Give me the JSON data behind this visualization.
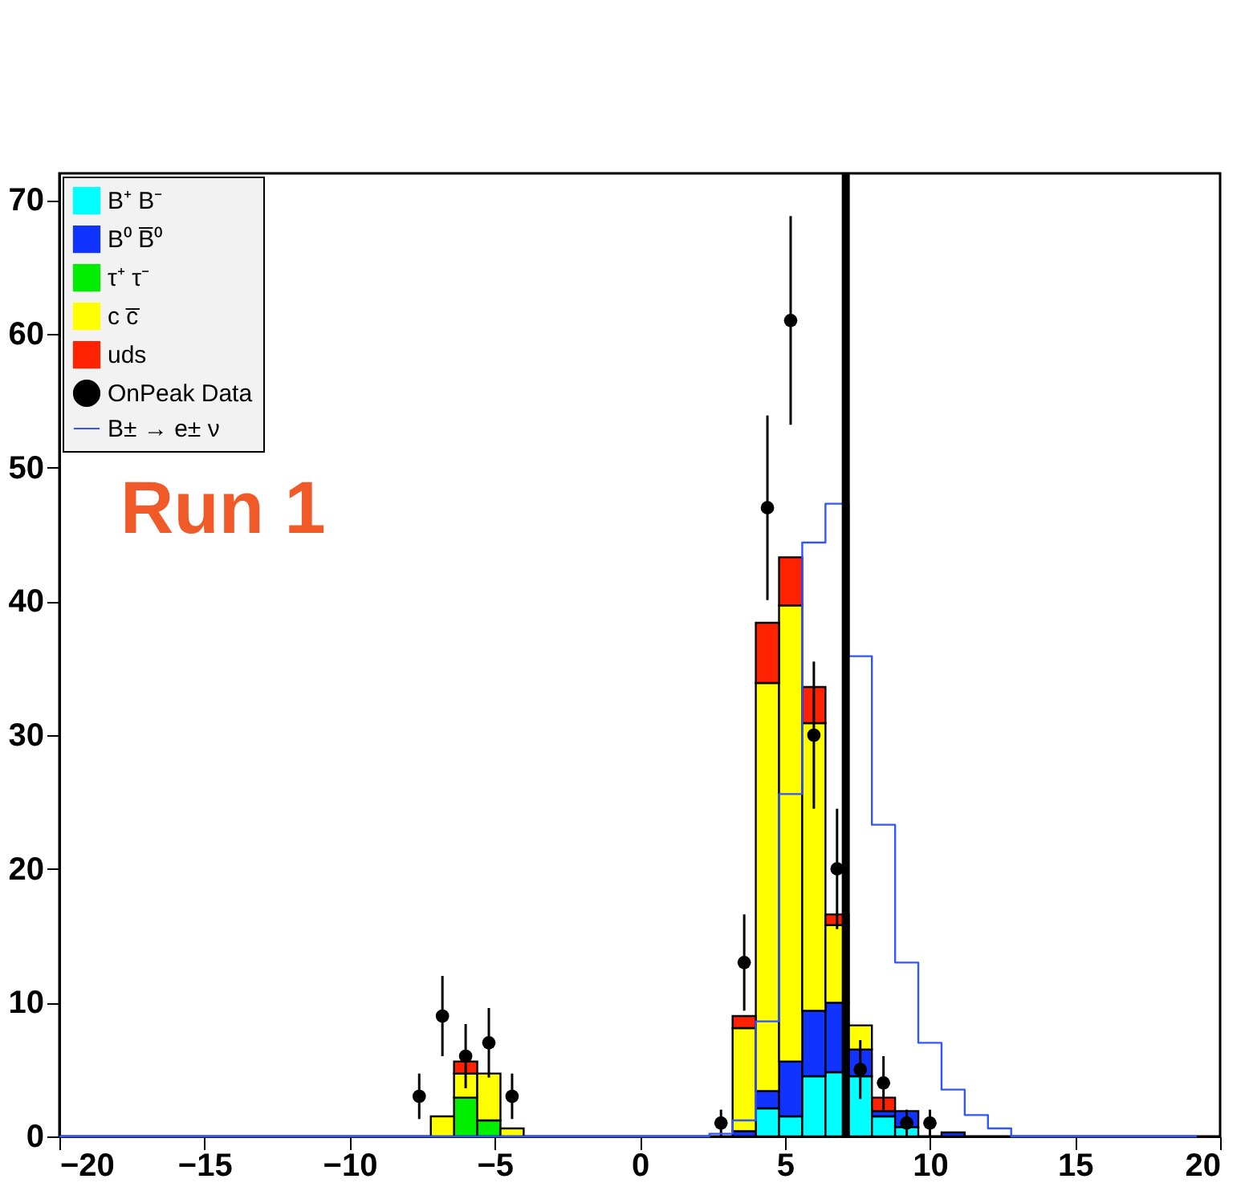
{
  "chart_data": {
    "type": "bar",
    "stacked": true,
    "x": [
      -19.6,
      -18.8,
      -18,
      -17.2,
      -16.4,
      -15.6,
      -14.8,
      -14,
      -13.2,
      -12.4,
      -11.6,
      -10.8,
      -10,
      -9.2,
      -8.4,
      -7.6,
      -6.8,
      -6,
      -5.2,
      -4.4,
      -3.6,
      -2.8,
      -2,
      -1.2,
      -0.4,
      0.4,
      1.2,
      2,
      2.8,
      3.6,
      4.4,
      5.2,
      6,
      6.8,
      7.6,
      8.4,
      9.2,
      10,
      10.8,
      11.6,
      12.4,
      13.2,
      14,
      14.8,
      15.6,
      16.4,
      17.2,
      18,
      18.8,
      19.6
    ],
    "series": [
      {
        "name": "B⁺ B⁻",
        "color": "#00ffff",
        "values": [
          0,
          0,
          0,
          0,
          0,
          0,
          0,
          0,
          0,
          0,
          0,
          0,
          0,
          0,
          0,
          0,
          0,
          0,
          0,
          0,
          0,
          0,
          0,
          0,
          0,
          0,
          0,
          0,
          0,
          0,
          2.1,
          1.5,
          4.5,
          4.8,
          4.5,
          1.5,
          0.7,
          0,
          0,
          0,
          0,
          0,
          0,
          0,
          0,
          0,
          0,
          0,
          0,
          0
        ]
      },
      {
        "name": "B⁰ B̅⁰",
        "color": "#1133ff",
        "values": [
          0,
          0,
          0,
          0,
          0,
          0,
          0,
          0,
          0,
          0,
          0,
          0,
          0,
          0,
          0,
          0,
          0,
          0,
          0,
          0,
          0,
          0,
          0,
          0,
          0,
          0,
          0,
          0,
          0,
          0.4,
          1.3,
          4.1,
          4.9,
          5.2,
          2.0,
          0.4,
          1.2,
          0,
          0.3,
          0,
          0,
          0,
          0,
          0,
          0,
          0,
          0,
          0,
          0,
          0
        ]
      },
      {
        "name": "τ⁺ τ⁻",
        "color": "#00ee00",
        "values": [
          0,
          0,
          0,
          0,
          0,
          0,
          0,
          0,
          0,
          0,
          0,
          0,
          0,
          0,
          0,
          0,
          0,
          2.9,
          1.2,
          0,
          0,
          0,
          0,
          0,
          0,
          0,
          0,
          0,
          0,
          0,
          0,
          0,
          0,
          0,
          0,
          0,
          0,
          0,
          0,
          0,
          0,
          0,
          0,
          0,
          0,
          0,
          0,
          0,
          0,
          0
        ]
      },
      {
        "name": "c c̅",
        "color": "#ffff00",
        "values": [
          0,
          0,
          0,
          0,
          0,
          0,
          0,
          0,
          0,
          0,
          0,
          0,
          0,
          0,
          0,
          0,
          1.5,
          1.8,
          3.5,
          0.6,
          0,
          0,
          0,
          0,
          0,
          0,
          0,
          0,
          0,
          7.7,
          30.5,
          34.1,
          21.5,
          5.8,
          1.8,
          0,
          0,
          0,
          0,
          0,
          0,
          0,
          0,
          0,
          0,
          0,
          0,
          0,
          0,
          0
        ]
      },
      {
        "name": "uds",
        "color": "#ff2200",
        "values": [
          0,
          0,
          0,
          0,
          0,
          0,
          0,
          0,
          0,
          0,
          0,
          0,
          0,
          0,
          0,
          0,
          0,
          0.9,
          0,
          0,
          0,
          0,
          0,
          0,
          0,
          0,
          0,
          0,
          0,
          0.9,
          4.5,
          3.6,
          2.7,
          0.8,
          0,
          1.0,
          0,
          0,
          0,
          0,
          0,
          0,
          0,
          0,
          0,
          0,
          0,
          0,
          0,
          0
        ]
      },
      {
        "name": "OnPeak Data",
        "type": "scatter",
        "color": "#000000",
        "x": [
          -7.6,
          -6.8,
          -6.0,
          -5.2,
          -4.4,
          2.8,
          3.6,
          4.4,
          5.2,
          6.0,
          6.8,
          7.6,
          8.4,
          9.2,
          10.0
        ],
        "values": [
          3,
          9,
          6,
          7,
          3,
          1,
          13,
          47,
          61,
          30,
          20,
          5,
          4,
          1,
          1
        ],
        "errors": [
          1.7,
          3,
          2.4,
          2.6,
          1.7,
          1,
          3.6,
          6.9,
          7.8,
          5.5,
          4.5,
          2.2,
          2,
          1,
          1
        ]
      },
      {
        "name": "B± → e± ν",
        "type": "step",
        "marker": "none",
        "color": "#3355ff",
        "x": [
          -20,
          -19.2,
          -18.4,
          -17.6,
          -16.8,
          -16,
          -15.2,
          -14.4,
          -13.6,
          -12.8,
          -12,
          -11.2,
          -10.4,
          -9.6,
          -8.8,
          -8,
          -7.2,
          -6.4,
          -5.6,
          -4.8,
          -4,
          -3.2,
          -2.4,
          -1.6,
          -0.8,
          0,
          0.8,
          1.6,
          2.4,
          3.2,
          4,
          4.8,
          5.6,
          6.4,
          7.2,
          8,
          8.8,
          9.6,
          10.4,
          11.2,
          12,
          12.8,
          13.6,
          14.4,
          15.2,
          16,
          16.8,
          17.6,
          18.4,
          19.2
        ],
        "values": [
          0,
          0,
          0,
          0,
          0,
          0,
          0,
          0,
          0,
          0,
          0,
          0,
          0,
          0,
          0,
          0,
          0,
          0,
          0,
          0,
          0,
          0,
          0,
          0,
          0,
          0,
          0,
          0,
          0.2,
          1.2,
          8.6,
          25.6,
          44.4,
          47.3,
          35.9,
          23.3,
          13.0,
          7.0,
          3.5,
          1.6,
          0.6,
          0,
          0,
          0,
          0,
          0,
          0,
          0,
          0,
          0
        ]
      }
    ],
    "xlim": [
      -20,
      20
    ],
    "xticks": [
      -20,
      -15,
      -10,
      -5,
      0,
      5,
      10,
      15,
      20
    ],
    "ylim": [
      0,
      72
    ],
    "yticks": [
      0,
      10,
      20,
      30,
      40,
      50,
      60,
      70
    ],
    "legend": "top left",
    "grid": false,
    "marker": "circle",
    "ref_lines": [
      {
        "axis": "x",
        "value": 7.1,
        "color": "#000000"
      }
    ],
    "annotations": [
      "Run 1"
    ]
  }
}
